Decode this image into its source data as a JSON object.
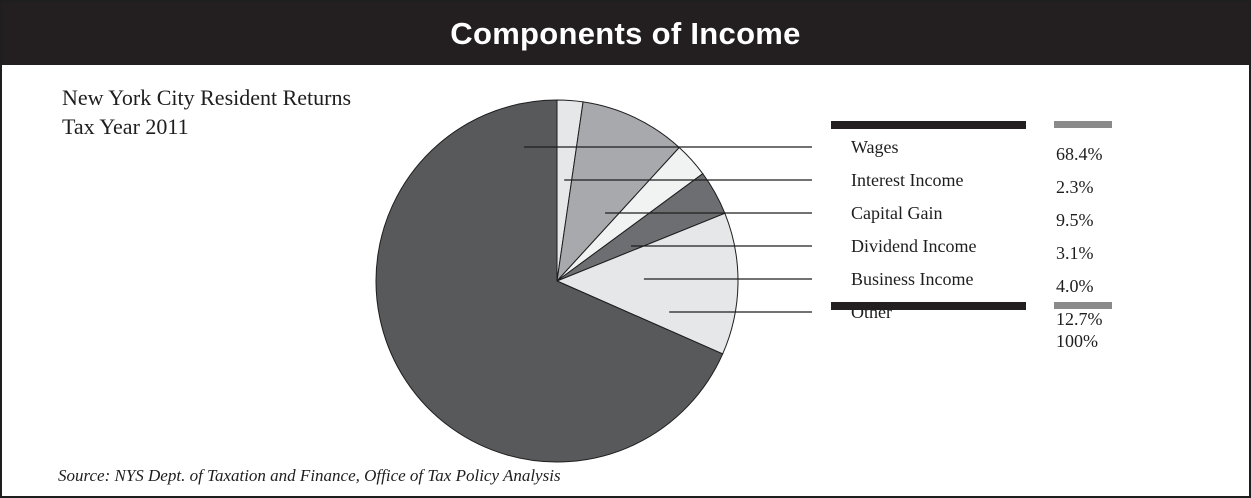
{
  "header": {
    "title": "Components of Income"
  },
  "subtitle": {
    "line1": "New York City Resident Returns",
    "line2": "Tax Year 2011"
  },
  "source": "Source: NYS Dept. of Taxation and Finance, Office of Tax Policy Analysis",
  "colors": {
    "title_bar": "#231f20",
    "rule_dark": "#231f20",
    "rule_gray": "#8a8a8a",
    "outline": "#1e1e1e"
  },
  "chart_data": {
    "type": "pie",
    "title": "Components of Income",
    "total_label": "100%",
    "slices": [
      {
        "label": "Wages",
        "value": 68.4,
        "value_label": "68.4%",
        "color": "#58595b"
      },
      {
        "label": "Interest Income",
        "value": 2.3,
        "value_label": "2.3%",
        "color": "#e6e7e8"
      },
      {
        "label": "Capital Gain",
        "value": 9.5,
        "value_label": "9.5%",
        "color": "#a7a9ac"
      },
      {
        "label": "Dividend Income",
        "value": 3.1,
        "value_label": "3.1%",
        "color": "#f1f2f2"
      },
      {
        "label": "Business Income",
        "value": 4.0,
        "value_label": "4.0%",
        "color": "#6d6e71"
      },
      {
        "label": "Other",
        "value": 12.7,
        "value_label": "12.7%",
        "color": "#e6e7e8"
      }
    ]
  }
}
